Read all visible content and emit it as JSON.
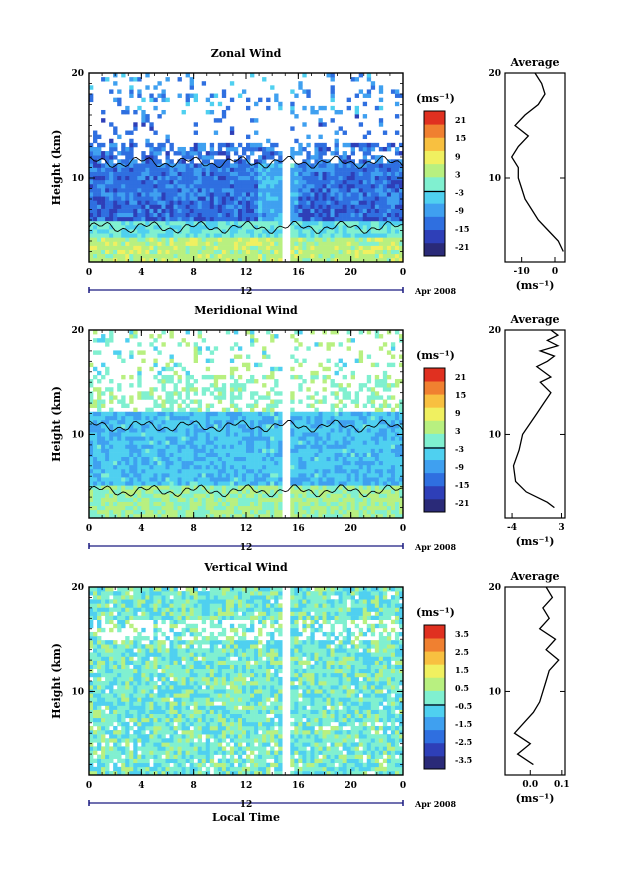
{
  "chart_data": [
    {
      "type": "heatmap",
      "title": "Zonal Wind",
      "ylabel": "Height (km)",
      "yticks": [
        "20",
        "10"
      ],
      "xticks": [
        "0",
        "4",
        "8",
        "12",
        "16",
        "20",
        "0"
      ],
      "xlim": [
        0,
        24
      ],
      "ylim": [
        2,
        20
      ],
      "day_marker": "12",
      "date_label": "Apr 2008",
      "colorbar": {
        "unit": "(ms⁻¹)",
        "ticks": [
          "21",
          "15",
          "9",
          "3",
          "-3",
          "-9",
          "-15",
          "-21"
        ],
        "range": [
          -24,
          24
        ]
      },
      "profile": {
        "title": "Average",
        "yticks": [
          "20",
          "10"
        ],
        "xticks": [
          "-10",
          "0"
        ],
        "xlabel": "(ms⁻¹)",
        "xlim": [
          -15,
          3
        ],
        "points": [
          [
            2.5,
            3
          ],
          [
            1,
            4
          ],
          [
            -2,
            5
          ],
          [
            -5,
            6
          ],
          [
            -7,
            7
          ],
          [
            -9,
            8
          ],
          [
            -10,
            9
          ],
          [
            -11,
            10
          ],
          [
            -11,
            11
          ],
          [
            -13,
            12
          ],
          [
            -11,
            13
          ],
          [
            -8,
            14
          ],
          [
            -12,
            15
          ],
          [
            -9,
            16
          ],
          [
            -5,
            17
          ],
          [
            -3,
            18
          ],
          [
            -4,
            19
          ],
          [
            -6,
            20
          ]
        ]
      }
    },
    {
      "type": "heatmap",
      "title": "Meridional Wind",
      "ylabel": "Height (km)",
      "yticks": [
        "20",
        "10"
      ],
      "xticks": [
        "0",
        "4",
        "8",
        "12",
        "16",
        "20",
        "0"
      ],
      "xlim": [
        0,
        24
      ],
      "ylim": [
        2,
        20
      ],
      "day_marker": "12",
      "date_label": "Apr 2008",
      "colorbar": {
        "unit": "(ms⁻¹)",
        "ticks": [
          "21",
          "15",
          "9",
          "3",
          "-3",
          "-9",
          "-15",
          "-21"
        ],
        "range": [
          -24,
          24
        ]
      },
      "profile": {
        "title": "Average",
        "yticks": [
          "20",
          "10"
        ],
        "xticks": [
          "-4",
          "3"
        ],
        "xlabel": "(ms⁻¹)",
        "xlim": [
          -5,
          3.5
        ],
        "points": [
          [
            2,
            3
          ],
          [
            1,
            3.5
          ],
          [
            -2,
            4.5
          ],
          [
            -3.5,
            5.5
          ],
          [
            -3.8,
            7
          ],
          [
            -3,
            8.5
          ],
          [
            -2.5,
            10
          ],
          [
            -1.5,
            11
          ],
          [
            -0.5,
            12
          ],
          [
            0.5,
            13
          ],
          [
            1.5,
            14
          ],
          [
            0,
            15
          ],
          [
            1.5,
            15.5
          ],
          [
            -0.5,
            16.5
          ],
          [
            1,
            17
          ],
          [
            2,
            17.5
          ],
          [
            0,
            18
          ],
          [
            2.5,
            18.5
          ],
          [
            1,
            19
          ],
          [
            2.5,
            19.5
          ],
          [
            1.5,
            20
          ]
        ]
      }
    },
    {
      "type": "heatmap",
      "title": "Vertical Wind",
      "ylabel": "Height (km)",
      "yticks": [
        "20",
        "10"
      ],
      "xticks": [
        "0",
        "4",
        "8",
        "12",
        "16",
        "20",
        "0"
      ],
      "xlim": [
        0,
        24
      ],
      "ylim": [
        2,
        20
      ],
      "day_marker": "12",
      "date_label": "Apr 2008",
      "xlabel": "Local Time",
      "colorbar": {
        "unit": "(ms⁻¹)",
        "ticks": [
          "3.5",
          "2.5",
          "1.5",
          "0.5",
          "-0.5",
          "-1.5",
          "-2.5",
          "-3.5"
        ],
        "range": [
          -4,
          4
        ]
      },
      "profile": {
        "title": "Average",
        "yticks": [
          "20",
          "10"
        ],
        "xticks": [
          "0.0",
          "0.1"
        ],
        "xlabel": "(ms⁻¹)",
        "xlim": [
          -0.08,
          0.11
        ],
        "points": [
          [
            0.01,
            3
          ],
          [
            -0.04,
            4
          ],
          [
            0.0,
            5
          ],
          [
            -0.05,
            6
          ],
          [
            -0.02,
            7
          ],
          [
            0.01,
            8
          ],
          [
            0.03,
            9
          ],
          [
            0.04,
            10
          ],
          [
            0.05,
            11
          ],
          [
            0.06,
            12
          ],
          [
            0.09,
            13
          ],
          [
            0.05,
            14
          ],
          [
            0.08,
            15
          ],
          [
            0.03,
            16
          ],
          [
            0.06,
            17
          ],
          [
            0.04,
            18
          ],
          [
            0.07,
            19
          ],
          [
            0.05,
            20
          ]
        ]
      }
    }
  ]
}
